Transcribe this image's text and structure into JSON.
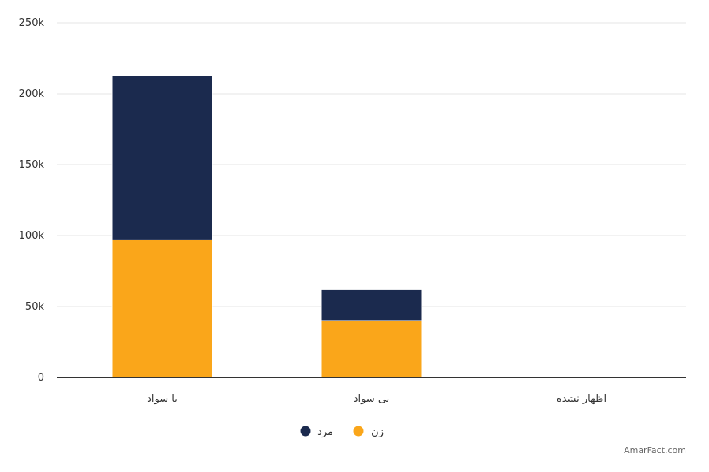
{
  "chart_data": {
    "type": "bar",
    "stacked": true,
    "categories": [
      "با سواد",
      "بی سواد",
      "اظهار نشده"
    ],
    "series": [
      {
        "name": "زن",
        "color": "#FAA61A",
        "values": [
          97000,
          40000,
          300
        ]
      },
      {
        "name": "مرد",
        "color": "#1B2A4E",
        "values": [
          116000,
          22000,
          200
        ]
      }
    ],
    "yticks": [
      "0",
      "50k",
      "100k",
      "150k",
      "200k",
      "250k"
    ],
    "ylim": [
      0,
      250000
    ],
    "grid": true,
    "legend_position": "bottom-center",
    "title": "",
    "xlabel": "",
    "ylabel": ""
  },
  "watermark": "AmarFact.com"
}
